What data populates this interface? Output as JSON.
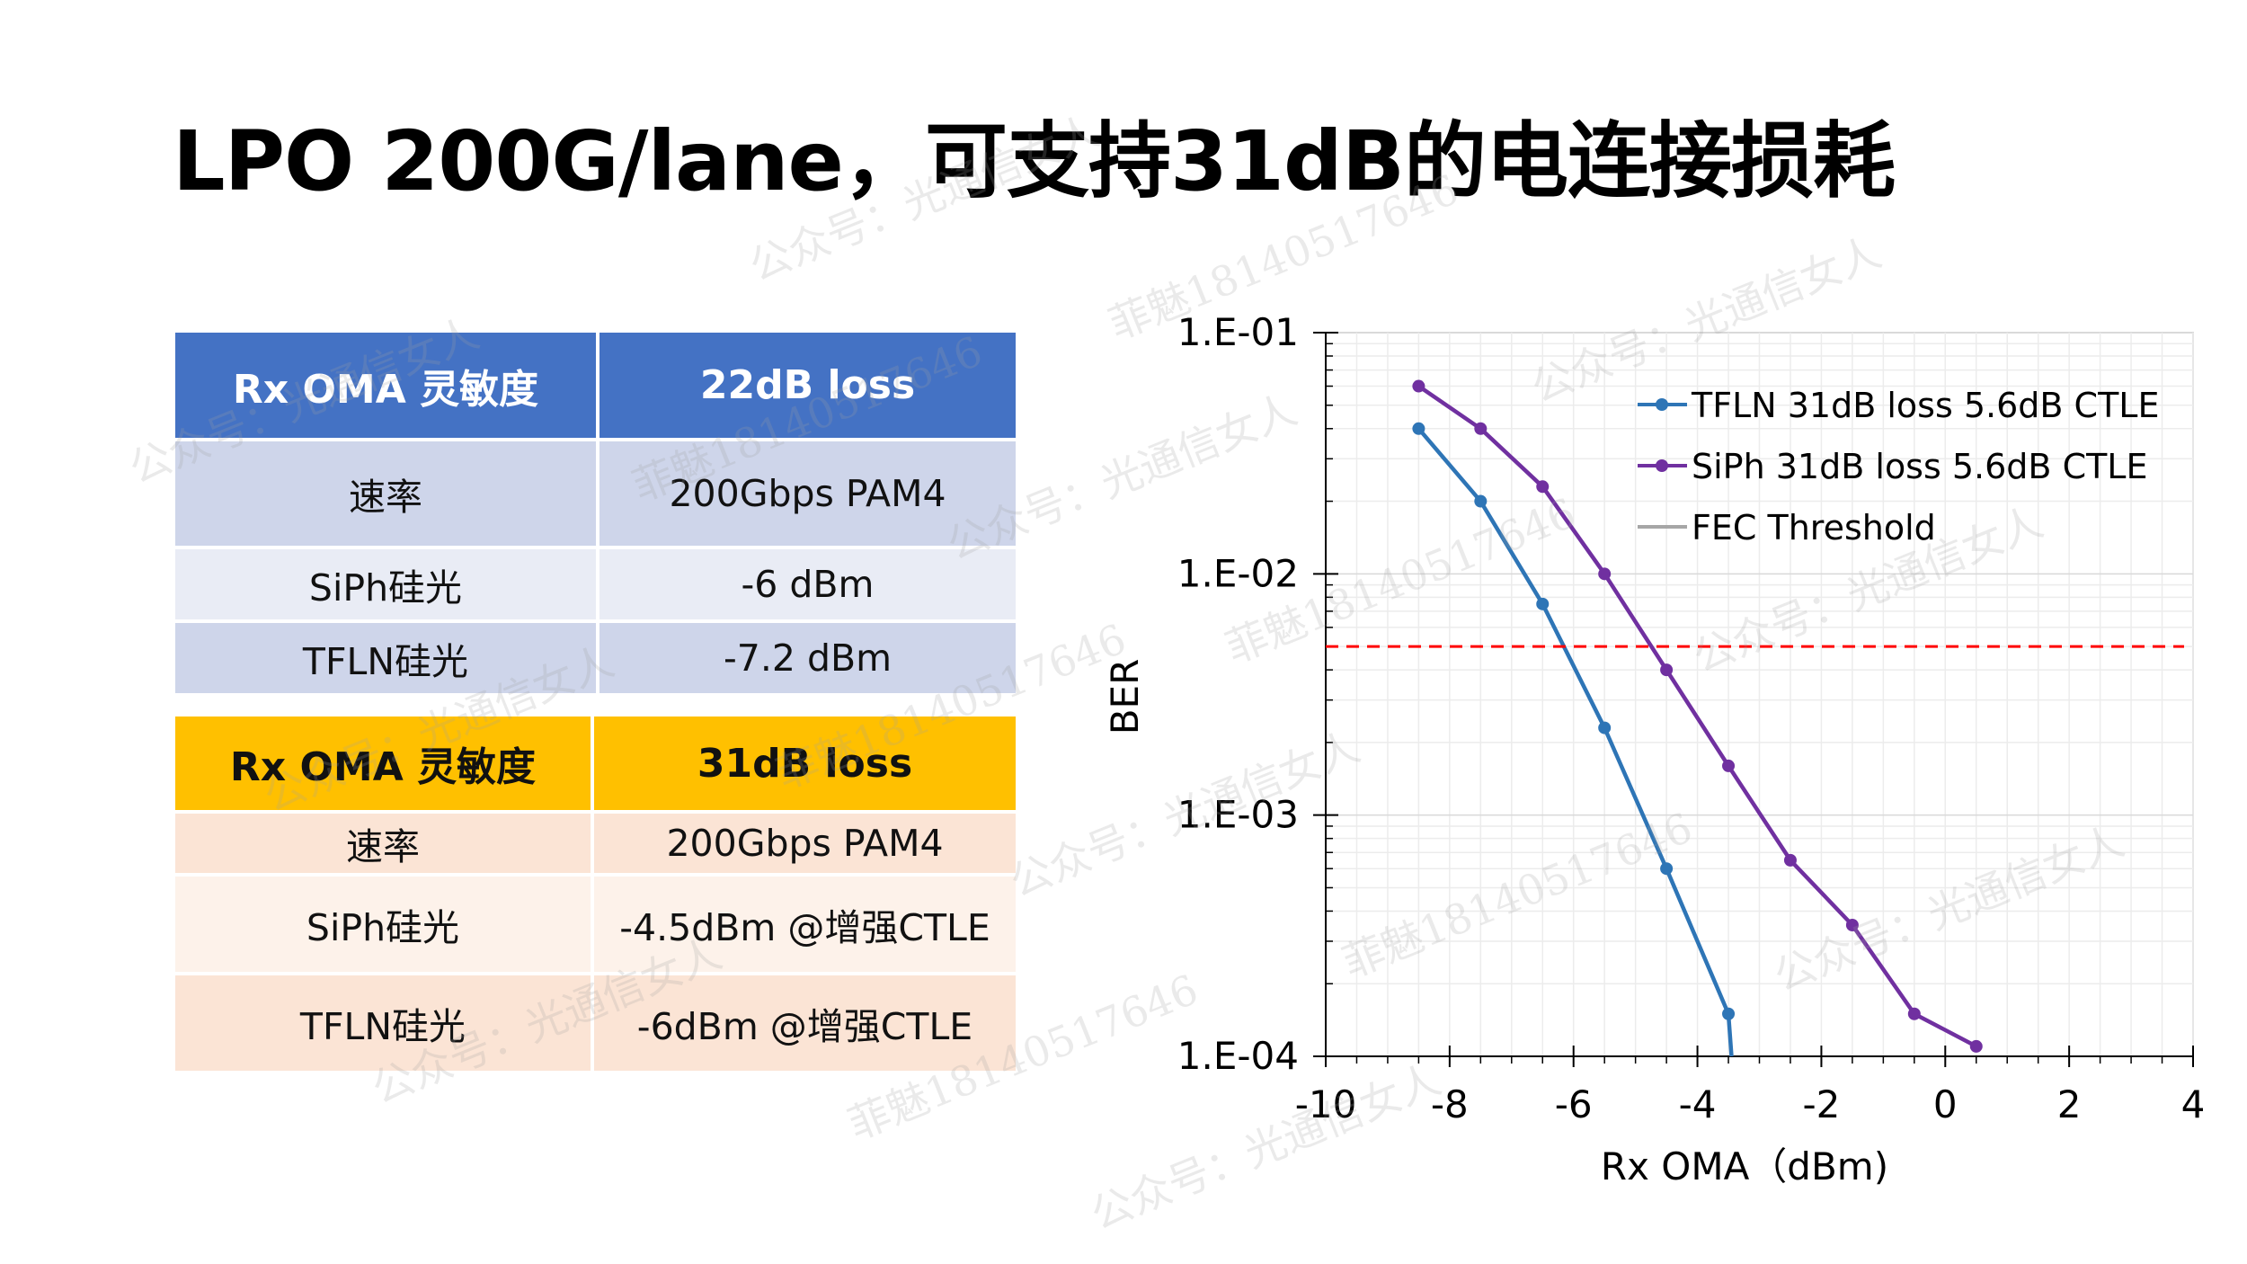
{
  "title": "LPO 200G/lane，可支持31dB的电连接损耗",
  "table_22db": {
    "header": [
      "Rx OMA 灵敏度",
      "22dB loss"
    ],
    "rows": [
      [
        "速率",
        "200Gbps PAM4"
      ],
      [
        "SiPh硅光",
        "-6 dBm"
      ],
      [
        "TFLN硅光",
        "-7.2 dBm"
      ]
    ],
    "header_color": "#4472c4"
  },
  "table_31db": {
    "header": [
      "Rx OMA 灵敏度",
      "31dB loss"
    ],
    "rows": [
      [
        "速率",
        "200Gbps PAM4"
      ],
      [
        "SiPh硅光",
        "-4.5dBm @增强CTLE"
      ],
      [
        "TFLN硅光",
        "-6dBm @增强CTLE"
      ]
    ],
    "header_color": "#ffc000"
  },
  "chart_data": {
    "type": "line",
    "xlabel": "Rx OMA（dBm)",
    "ylabel": "BER",
    "xlim": [
      -10,
      4
    ],
    "ylim": [
      0.0001,
      0.1
    ],
    "yscale": "log",
    "x_ticks": [
      "-10",
      "-8",
      "-6",
      "-4",
      "-2",
      "0",
      "2",
      "4"
    ],
    "y_ticks": [
      "1.E-01",
      "1.E-02",
      "1.E-03",
      "1.E-04"
    ],
    "grid": true,
    "legend_position": "top-right",
    "series": [
      {
        "name": "TFLN 31dB loss 5.6dB CTLE",
        "color": "#2e75b6",
        "x": [
          -8.5,
          -7.5,
          -6.5,
          -5.5,
          -4.5,
          -3.5,
          -3.45
        ],
        "y": [
          0.04,
          0.02,
          0.0075,
          0.0023,
          0.0006,
          0.00015,
          0.0001
        ]
      },
      {
        "name": "SiPh 31dB loss 5.6dB CTLE",
        "color": "#7030a0",
        "x": [
          -8.5,
          -7.5,
          -6.5,
          -5.5,
          -4.5,
          -3.5,
          -2.5,
          -1.5,
          -0.5,
          0.5
        ],
        "y": [
          0.06,
          0.04,
          0.023,
          0.01,
          0.004,
          0.0016,
          0.00065,
          0.00035,
          0.00015,
          0.00011
        ]
      },
      {
        "name": "FEC Threshold",
        "color": "#ff0000",
        "legend_color": "#a6a6a6",
        "dashed": true,
        "y_const": 0.005
      }
    ]
  },
  "watermarks": [
    "公众号：光通信女人",
    "菲魅18140517646"
  ]
}
